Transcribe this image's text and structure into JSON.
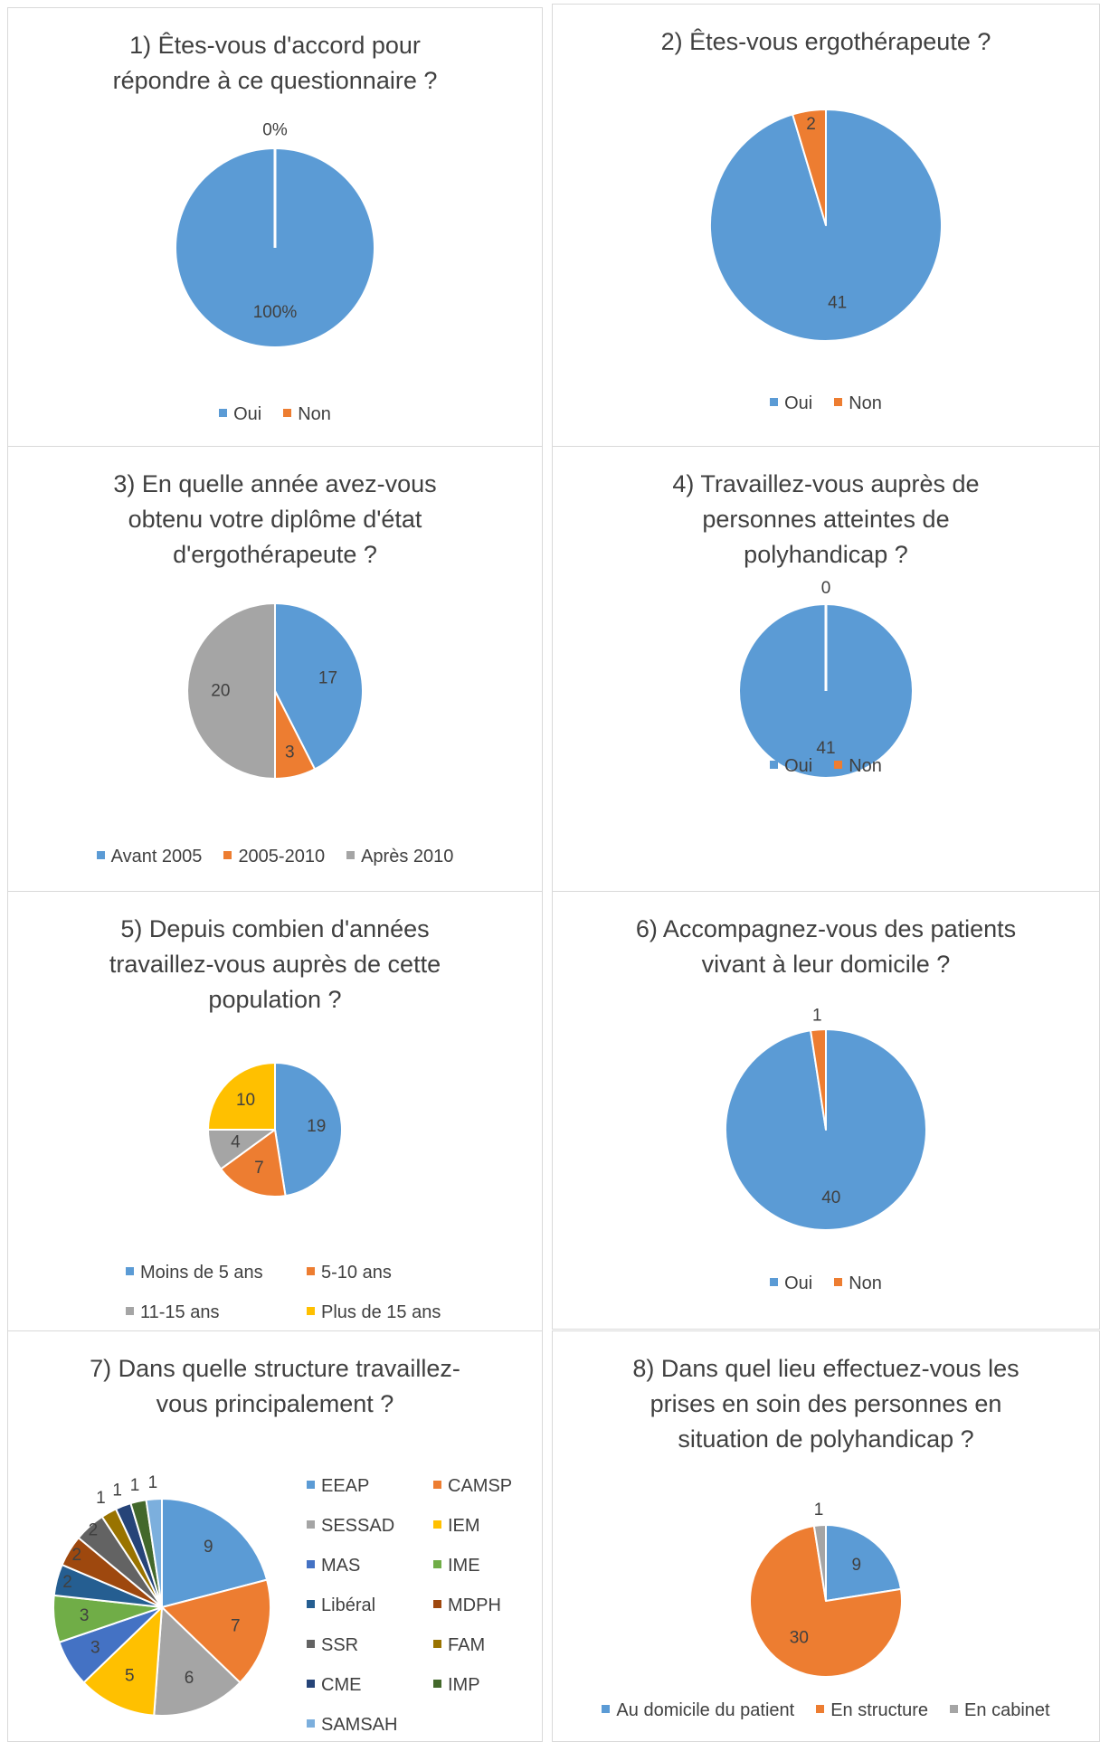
{
  "palette": {
    "blue": "#5b9bd5",
    "orange": "#ed7d31",
    "gray": "#a5a5a5",
    "yellow": "#ffc000",
    "darkblue": "#4472c4",
    "green": "#70ad47",
    "navy": "#255e91",
    "brown": "#9e480e",
    "darkgray": "#636363",
    "olive": "#997300",
    "deepnavy": "#264478",
    "darkgreen": "#43682b",
    "lightblue": "#7cafdd"
  },
  "chart_data": [
    {
      "type": "pie",
      "title": "1) Êtes-vous d'accord pour\nrépondre à ce questionnaire ?",
      "categories": [
        "Oui",
        "Non"
      ],
      "values": [
        100,
        0
      ],
      "data_labels": [
        "100%",
        "0%"
      ],
      "colors": [
        "#5b9bd5",
        "#ed7d31"
      ],
      "legend_position": "bottom"
    },
    {
      "type": "pie",
      "title": "2) Êtes-vous ergothérapeute ?",
      "categories": [
        "Oui",
        "Non"
      ],
      "values": [
        41,
        2
      ],
      "data_labels": [
        "41",
        "2"
      ],
      "colors": [
        "#5b9bd5",
        "#ed7d31"
      ],
      "legend_position": "bottom"
    },
    {
      "type": "pie",
      "title": "3) En quelle année avez-vous\nobtenu votre diplôme d'état\nd'ergothérapeute ?",
      "categories": [
        "Avant 2005",
        "2005-2010",
        "Après 2010"
      ],
      "values": [
        17,
        3,
        20
      ],
      "data_labels": [
        "17",
        "3",
        "20"
      ],
      "colors": [
        "#5b9bd5",
        "#ed7d31",
        "#a5a5a5"
      ],
      "legend_position": "bottom"
    },
    {
      "type": "pie",
      "title": "4) Travaillez-vous auprès de\npersonnes atteintes de\npolyhandicap ?",
      "categories": [
        "Oui",
        "Non"
      ],
      "values": [
        41,
        0
      ],
      "data_labels": [
        "41",
        "0"
      ],
      "colors": [
        "#5b9bd5",
        "#ed7d31"
      ],
      "legend_position": "bottom"
    },
    {
      "type": "pie",
      "title": "5) Depuis combien d'années\ntravaillez-vous auprès de cette\npopulation ?",
      "categories": [
        "Moins de 5 ans",
        "5-10 ans",
        "11-15 ans",
        "Plus de 15 ans"
      ],
      "values": [
        19,
        7,
        4,
        10
      ],
      "data_labels": [
        "19",
        "7",
        "4",
        "10"
      ],
      "colors": [
        "#5b9bd5",
        "#ed7d31",
        "#a5a5a5",
        "#ffc000"
      ],
      "legend_position": "bottom"
    },
    {
      "type": "pie",
      "title": "6) Accompagnez-vous des patients\nvivant à leur domicile ?",
      "categories": [
        "Oui",
        "Non"
      ],
      "values": [
        40,
        1
      ],
      "data_labels": [
        "40",
        "1"
      ],
      "colors": [
        "#5b9bd5",
        "#ed7d31"
      ],
      "legend_position": "bottom"
    },
    {
      "type": "pie",
      "title": "7) Dans quelle structure travaillez-\nvous principalement ?",
      "categories": [
        "EEAP",
        "CAMSP",
        "SESSAD",
        "IEM",
        "MAS",
        "IME",
        "Libéral",
        "MDPH",
        "SSR",
        "FAM",
        "CME",
        "IMP",
        "SAMSAH"
      ],
      "values": [
        9,
        7,
        6,
        5,
        3,
        3,
        2,
        2,
        2,
        1,
        1,
        1,
        1
      ],
      "data_labels": [
        "9",
        "7",
        "6",
        "5",
        "3",
        "3",
        "2",
        "2",
        "2",
        "1",
        "1",
        "1",
        "1"
      ],
      "colors": [
        "#5b9bd5",
        "#ed7d31",
        "#a5a5a5",
        "#ffc000",
        "#4472c4",
        "#70ad47",
        "#255e91",
        "#9e480e",
        "#636363",
        "#997300",
        "#264478",
        "#43682b",
        "#7cafdd"
      ],
      "legend_position": "right"
    },
    {
      "type": "pie",
      "title": "8) Dans quel lieu effectuez-vous les\nprises en soin des personnes en\nsituation de polyhandicap ?",
      "categories": [
        "Au domicile du patient",
        "En structure",
        "En cabinet"
      ],
      "values": [
        9,
        30,
        1
      ],
      "data_labels": [
        "9",
        "30",
        "1"
      ],
      "colors": [
        "#5b9bd5",
        "#ed7d31",
        "#a5a5a5"
      ],
      "legend_position": "bottom"
    }
  ]
}
